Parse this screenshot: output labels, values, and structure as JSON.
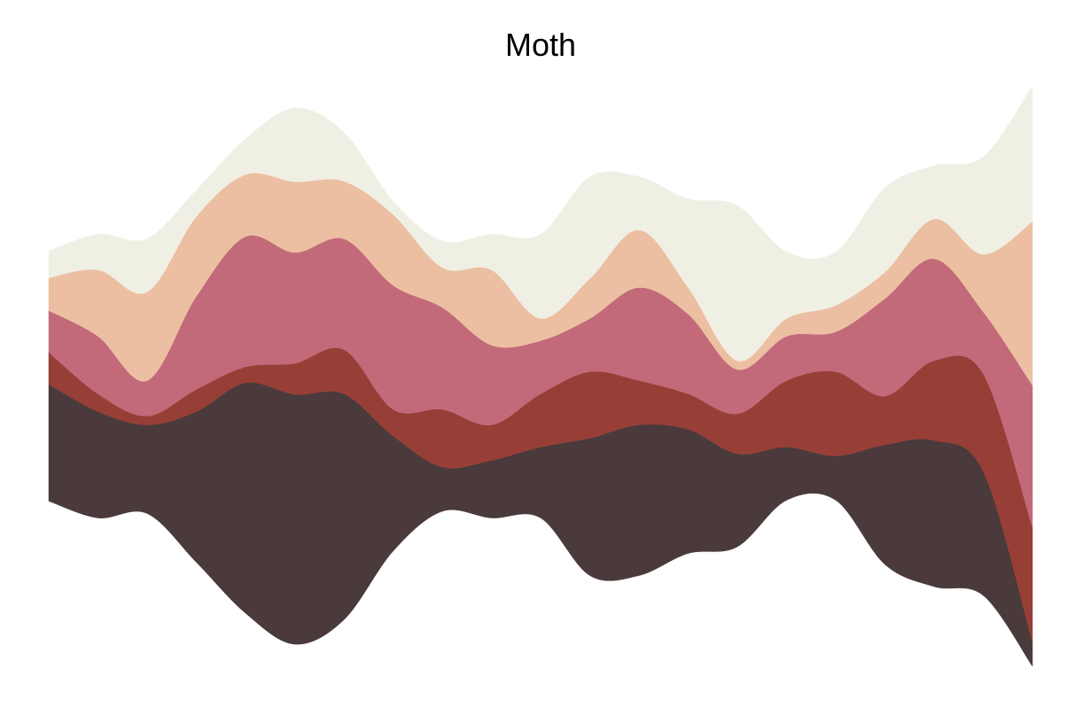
{
  "chart_data": {
    "type": "streamgraph",
    "title": "Moth",
    "series": [
      {
        "color": "#4a3a3b",
        "values": [
          132,
          120,
          100,
          170,
          260,
          282,
          255,
          130,
          50,
          65,
          80,
          155,
          170,
          140,
          105,
          60,
          50,
          135,
          165,
          140,
          27
        ]
      },
      {
        "color": "#973f37",
        "values": [
          36,
          20,
          10,
          25,
          18,
          35,
          50,
          30,
          65,
          40,
          60,
          75,
          50,
          40,
          45,
          75,
          95,
          55,
          90,
          110,
          130
        ]
      },
      {
        "color": "#c26a79",
        "values": [
          47,
          65,
          40,
          105,
          147,
          125,
          125,
          140,
          115,
          90,
          60,
          60,
          105,
          90,
          50,
          50,
          45,
          110,
          115,
          70,
          160
        ]
      },
      {
        "color": "#ecbfa2",
        "values": [
          37,
          75,
          100,
          90,
          70,
          80,
          65,
          80,
          45,
          85,
          25,
          45,
          65,
          30,
          10,
          20,
          30,
          30,
          45,
          65,
          185
        ]
      },
      {
        "color": "#f0efe4",
        "values": [
          30,
          40,
          60,
          30,
          40,
          83,
          55,
          15,
          30,
          40,
          95,
          115,
          60,
          100,
          175,
          75,
          60,
          95,
          60,
          110,
          153
        ]
      }
    ]
  }
}
